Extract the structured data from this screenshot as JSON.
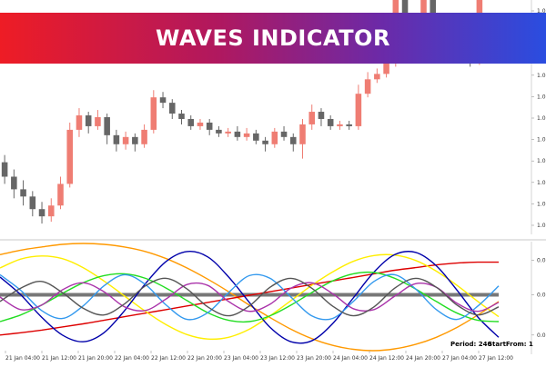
{
  "banner": {
    "title": "WAVES INDICATOR"
  },
  "readout": {
    "period": "Period: 240",
    "start_from": "StartFrom: 1"
  },
  "colors": {
    "bull": "#ef7d73",
    "bear": "#666666",
    "banner_start": "#ee1c25",
    "banner_end": "#2a4de0"
  },
  "chart_data": [
    {
      "type": "candlestick",
      "y_tick_labels": [
        "1.0",
        "1.0",
        "1.0",
        "1.0",
        "1.0",
        "1.0",
        "1.0",
        "1.0",
        "1.0",
        "1.0",
        "1.0"
      ],
      "grid": false,
      "candles": [
        {
          "o": 0.6,
          "c": 0.52,
          "h": 0.64,
          "l": 0.48
        },
        {
          "o": 0.52,
          "c": 0.45,
          "h": 0.56,
          "l": 0.4
        },
        {
          "o": 0.45,
          "c": 0.41,
          "h": 0.5,
          "l": 0.36
        },
        {
          "o": 0.41,
          "c": 0.34,
          "h": 0.44,
          "l": 0.3
        },
        {
          "o": 0.34,
          "c": 0.3,
          "h": 0.38,
          "l": 0.26
        },
        {
          "o": 0.3,
          "c": 0.36,
          "h": 0.4,
          "l": 0.27
        },
        {
          "o": 0.36,
          "c": 0.48,
          "h": 0.52,
          "l": 0.34
        },
        {
          "o": 0.48,
          "c": 0.78,
          "h": 0.82,
          "l": 0.46
        },
        {
          "o": 0.78,
          "c": 0.86,
          "h": 0.9,
          "l": 0.74
        },
        {
          "o": 0.86,
          "c": 0.8,
          "h": 0.88,
          "l": 0.76
        },
        {
          "o": 0.8,
          "c": 0.85,
          "h": 0.89,
          "l": 0.78
        },
        {
          "o": 0.85,
          "c": 0.75,
          "h": 0.87,
          "l": 0.7
        },
        {
          "o": 0.75,
          "c": 0.7,
          "h": 0.78,
          "l": 0.66
        },
        {
          "o": 0.7,
          "c": 0.74,
          "h": 0.77,
          "l": 0.67
        },
        {
          "o": 0.74,
          "c": 0.7,
          "h": 0.76,
          "l": 0.66
        },
        {
          "o": 0.7,
          "c": 0.78,
          "h": 0.81,
          "l": 0.68
        },
        {
          "o": 0.78,
          "c": 0.96,
          "h": 1.0,
          "l": 0.76
        },
        {
          "o": 0.96,
          "c": 0.93,
          "h": 0.99,
          "l": 0.9
        },
        {
          "o": 0.93,
          "c": 0.87,
          "h": 0.95,
          "l": 0.84
        },
        {
          "o": 0.87,
          "c": 0.84,
          "h": 0.89,
          "l": 0.81
        },
        {
          "o": 0.84,
          "c": 0.8,
          "h": 0.86,
          "l": 0.78
        },
        {
          "o": 0.8,
          "c": 0.82,
          "h": 0.84,
          "l": 0.78
        },
        {
          "o": 0.82,
          "c": 0.78,
          "h": 0.84,
          "l": 0.75
        },
        {
          "o": 0.78,
          "c": 0.76,
          "h": 0.8,
          "l": 0.74
        },
        {
          "o": 0.76,
          "c": 0.77,
          "h": 0.79,
          "l": 0.74
        },
        {
          "o": 0.77,
          "c": 0.74,
          "h": 0.8,
          "l": 0.72
        },
        {
          "o": 0.74,
          "c": 0.76,
          "h": 0.79,
          "l": 0.72
        },
        {
          "o": 0.76,
          "c": 0.72,
          "h": 0.78,
          "l": 0.7
        },
        {
          "o": 0.72,
          "c": 0.7,
          "h": 0.74,
          "l": 0.66
        },
        {
          "o": 0.7,
          "c": 0.77,
          "h": 0.79,
          "l": 0.68
        },
        {
          "o": 0.77,
          "c": 0.74,
          "h": 0.8,
          "l": 0.72
        },
        {
          "o": 0.74,
          "c": 0.7,
          "h": 0.76,
          "l": 0.66
        },
        {
          "o": 0.7,
          "c": 0.81,
          "h": 0.84,
          "l": 0.62
        },
        {
          "o": 0.81,
          "c": 0.88,
          "h": 0.92,
          "l": 0.78
        },
        {
          "o": 0.88,
          "c": 0.84,
          "h": 0.9,
          "l": 0.8
        },
        {
          "o": 0.84,
          "c": 0.8,
          "h": 0.86,
          "l": 0.78
        },
        {
          "o": 0.8,
          "c": 0.81,
          "h": 0.83,
          "l": 0.78
        },
        {
          "o": 0.81,
          "c": 0.8,
          "h": 0.83,
          "l": 0.78
        },
        {
          "o": 0.8,
          "c": 0.98,
          "h": 1.03,
          "l": 0.78
        },
        {
          "o": 0.98,
          "c": 1.06,
          "h": 1.1,
          "l": 0.96
        },
        {
          "o": 1.06,
          "c": 1.09,
          "h": 1.12,
          "l": 1.04
        },
        {
          "o": 1.09,
          "c": 1.15,
          "h": 1.18,
          "l": 1.07
        },
        {
          "o": 1.15,
          "c": 1.5,
          "h": 1.52,
          "l": 1.13
        },
        {
          "o": 1.5,
          "c": 1.27,
          "h": 1.52,
          "l": 1.22
        },
        {
          "o": 1.27,
          "c": 1.22,
          "h": 1.3,
          "l": 1.18
        },
        {
          "o": 1.22,
          "c": 1.5,
          "h": 1.52,
          "l": 1.2
        },
        {
          "o": 1.5,
          "c": 1.25,
          "h": 1.52,
          "l": 1.21
        },
        {
          "o": 1.25,
          "c": 1.2,
          "h": 1.28,
          "l": 1.16
        },
        {
          "o": 1.2,
          "c": 1.24,
          "h": 1.27,
          "l": 1.18
        },
        {
          "o": 1.24,
          "c": 1.18,
          "h": 1.26,
          "l": 1.15
        },
        {
          "o": 1.18,
          "c": 1.16,
          "h": 1.2,
          "l": 1.13
        },
        {
          "o": 1.16,
          "c": 1.5,
          "h": 1.52,
          "l": 1.14
        }
      ]
    },
    {
      "type": "line",
      "y_tick_labels": [
        "0.0",
        "0.0",
        "0.0"
      ],
      "x_tick_labels": [
        "21 Jan 04:00",
        "21 Jan 12:00",
        "21 Jan 20:00",
        "22 Jan 04:00",
        "22 Jan 12:00",
        "22 Jan 20:00",
        "23 Jan 04:00",
        "23 Jan 12:00",
        "23 Jan 20:00",
        "24 Jan 04:00",
        "24 Jan 12:00",
        "24 Jan 20:00",
        "27 Jan 04:00",
        "27 Jan 12:00"
      ],
      "ylim": [
        -1.2,
        1.2
      ],
      "series": [
        {
          "color": "#777777",
          "values": [
            0.05,
            0.05,
            0.05,
            0.05,
            0.05,
            0.05,
            0.05,
            0.05,
            0.05,
            0.05,
            0.05,
            0.05,
            0.05,
            0.05,
            0.05,
            0.05,
            0.05,
            0.05,
            0.05,
            0.05,
            0.05,
            0.05,
            0.05,
            0.05,
            0.05
          ]
        },
        {
          "color": "#ff9900",
          "values": [
            0.95,
            1.05,
            1.12,
            1.18,
            1.2,
            1.18,
            1.12,
            1.02,
            0.86,
            0.65,
            0.4,
            0.12,
            -0.18,
            -0.46,
            -0.72,
            -0.93,
            -1.08,
            -1.17,
            -1.2,
            -1.16,
            -1.06,
            -0.9,
            -0.68,
            -0.4,
            -0.1
          ]
        },
        {
          "color": "#dd0000",
          "values": [
            -0.85,
            -0.8,
            -0.74,
            -0.67,
            -0.6,
            -0.52,
            -0.44,
            -0.36,
            -0.28,
            -0.2,
            -0.12,
            -0.04,
            0.04,
            0.12,
            0.2,
            0.28,
            0.36,
            0.44,
            0.52,
            0.6,
            0.66,
            0.72,
            0.76,
            0.78,
            0.78
          ]
        },
        {
          "color": "#ffee00",
          "values": [
            0.65,
            0.85,
            0.92,
            0.86,
            0.66,
            0.36,
            0.02,
            -0.32,
            -0.62,
            -0.84,
            -0.94,
            -0.9,
            -0.72,
            -0.42,
            -0.08,
            0.26,
            0.56,
            0.8,
            0.93,
            0.94,
            0.82,
            0.58,
            0.26,
            -0.1,
            -0.44
          ]
        },
        {
          "color": "#0000aa",
          "values": [
            0.45,
            0.05,
            -0.45,
            -0.85,
            -1.0,
            -0.8,
            -0.3,
            0.3,
            0.8,
            1.02,
            0.9,
            0.45,
            -0.12,
            -0.68,
            -1.0,
            -0.98,
            -0.6,
            -0.02,
            0.56,
            0.95,
            1.0,
            0.7,
            0.15,
            -0.45,
            -0.9
          ]
        },
        {
          "color": "#22dd22",
          "values": [
            -0.55,
            -0.4,
            -0.18,
            0.08,
            0.32,
            0.48,
            0.52,
            0.42,
            0.2,
            -0.08,
            -0.35,
            -0.52,
            -0.55,
            -0.42,
            -0.18,
            0.1,
            0.36,
            0.52,
            0.55,
            0.42,
            0.18,
            -0.1,
            -0.36,
            -0.52,
            -0.55
          ]
        },
        {
          "color": "#3399ee",
          "values": [
            0.5,
            0.15,
            -0.3,
            -0.48,
            -0.2,
            0.25,
            0.5,
            0.28,
            -0.18,
            -0.5,
            -0.35,
            0.1,
            0.48,
            0.42,
            0.0,
            -0.42,
            -0.48,
            -0.1,
            0.35,
            0.5,
            0.18,
            -0.28,
            -0.5,
            -0.2,
            0.25
          ]
        },
        {
          "color": "#aa33aa",
          "values": [
            0.0,
            -0.28,
            -0.18,
            0.16,
            0.32,
            0.12,
            -0.22,
            -0.3,
            -0.04,
            0.28,
            0.26,
            -0.1,
            -0.32,
            -0.16,
            0.2,
            0.32,
            0.08,
            -0.26,
            -0.28,
            0.02,
            0.3,
            0.22,
            -0.14,
            -0.32,
            -0.12
          ]
        },
        {
          "color": "#555555",
          "values": [
            -0.1,
            0.2,
            0.35,
            0.1,
            -0.25,
            -0.4,
            -0.15,
            0.25,
            0.42,
            0.18,
            -0.22,
            -0.42,
            -0.2,
            0.22,
            0.42,
            0.2,
            -0.2,
            -0.42,
            -0.22,
            0.2,
            0.42,
            0.22,
            -0.18,
            -0.4,
            -0.22
          ]
        }
      ]
    }
  ]
}
